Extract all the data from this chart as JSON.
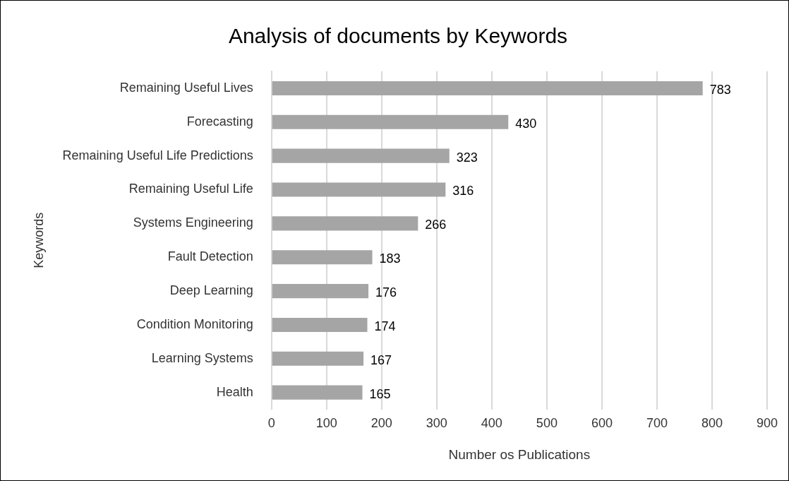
{
  "chart_data": {
    "type": "bar",
    "orientation": "horizontal",
    "title": "Analysis of documents by Keywords",
    "xlabel": "Number os Publications",
    "ylabel": "Keywords",
    "categories": [
      "Remaining Useful Lives",
      "Forecasting",
      "Remaining Useful Life Predictions",
      "Remaining Useful Life",
      "Systems Engineering",
      "Fault Detection",
      "Deep Learning",
      "Condition Monitoring",
      "Learning Systems",
      "Health"
    ],
    "values": [
      783,
      430,
      323,
      316,
      266,
      183,
      176,
      174,
      167,
      165
    ],
    "color": "#a5a5a5",
    "xlim": [
      0,
      900
    ],
    "xticks": [
      0,
      100,
      200,
      300,
      400,
      500,
      600,
      700,
      800,
      900
    ],
    "grid": "x",
    "data_labels": true,
    "legend": false
  }
}
